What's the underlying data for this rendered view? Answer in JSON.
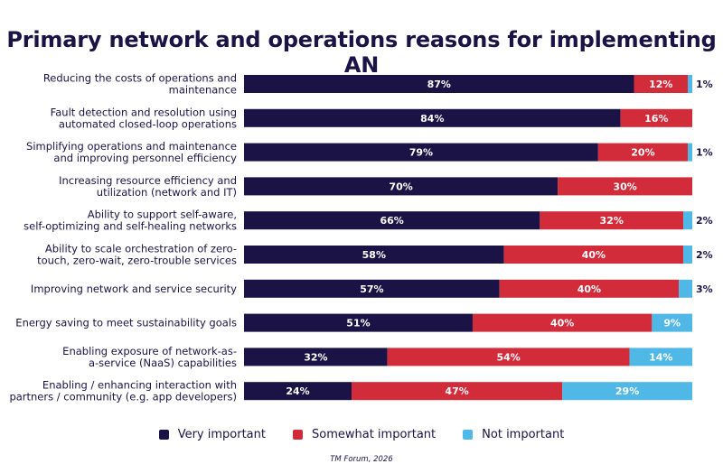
{
  "chart_data": {
    "type": "bar",
    "orientation": "horizontal",
    "stacked": true,
    "title": "Primary network and operations reasons for implementing AN",
    "xlabel": "",
    "ylabel": "",
    "xlim": [
      0,
      100
    ],
    "grid": false,
    "legend_position": "bottom",
    "categories": [
      [
        "Reducing the costs of operations and",
        "maintenance"
      ],
      [
        "Fault detection and resolution using",
        "automated closed-loop operations"
      ],
      [
        "Simplifying operations and maintenance",
        "and improving personnel efficiency"
      ],
      [
        "Increasing resource efficiency and",
        "utilization (network and IT)"
      ],
      [
        "Ability to support self-aware,",
        "self-optimizing and self-healing networks"
      ],
      [
        "Ability to scale orchestration of zero-",
        "touch, zero-wait, zero-trouble services"
      ],
      [
        "Improving network and service security"
      ],
      [
        "Energy saving to meet sustainability goals"
      ],
      [
        "Enabling exposure of network-as-",
        "a-service (NaaS) capabilities"
      ],
      [
        "Enabling / enhancing interaction with",
        "partners / community (e.g. app developers)"
      ]
    ],
    "series": [
      {
        "name": "Very important",
        "color": "#1b1246",
        "label_color": "#ffffff",
        "values": [
          87,
          84,
          79,
          70,
          66,
          58,
          57,
          51,
          32,
          24
        ]
      },
      {
        "name": "Somewhat important",
        "color": "#d22b3a",
        "label_color": "#ffffff",
        "values": [
          12,
          16,
          20,
          30,
          32,
          40,
          40,
          40,
          54,
          47
        ]
      },
      {
        "name": "Not important",
        "color": "#4fb8e6",
        "label_color": "#ffffff",
        "values": [
          1,
          0,
          1,
          0,
          2,
          2,
          3,
          9,
          14,
          29
        ]
      }
    ],
    "source": "TM Forum, 2026"
  }
}
